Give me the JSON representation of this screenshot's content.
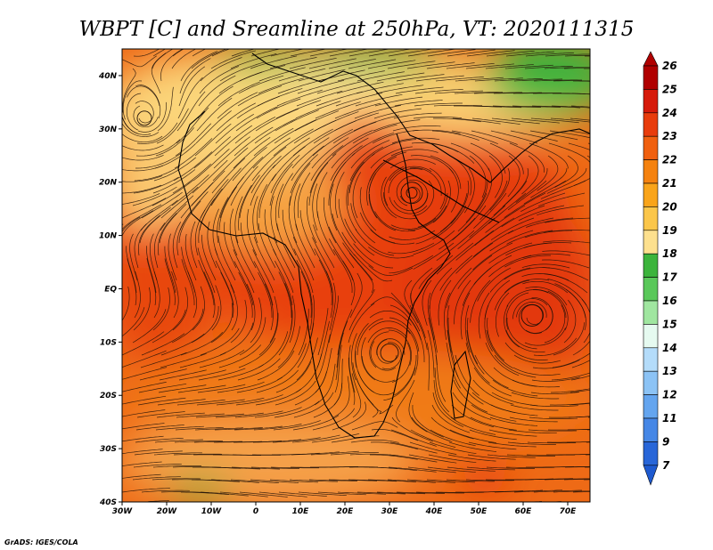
{
  "title": "WBPT [C] and Sreamline at 250hPa, VT: 2020111315",
  "credit": "GrADS: IGES/COLA",
  "map": {
    "lon_range": [
      -30,
      75
    ],
    "lat_range": [
      -40,
      45
    ],
    "x_ticks": [
      {
        "value": -30,
        "label": "30W"
      },
      {
        "value": -20,
        "label": "20W"
      },
      {
        "value": -10,
        "label": "10W"
      },
      {
        "value": 0,
        "label": "0"
      },
      {
        "value": 10,
        "label": "10E"
      },
      {
        "value": 20,
        "label": "20E"
      },
      {
        "value": 30,
        "label": "30E"
      },
      {
        "value": 40,
        "label": "40E"
      },
      {
        "value": 50,
        "label": "50E"
      },
      {
        "value": 60,
        "label": "60E"
      },
      {
        "value": 70,
        "label": "70E"
      }
    ],
    "y_ticks": [
      {
        "value": 40,
        "label": "40N"
      },
      {
        "value": 30,
        "label": "30N"
      },
      {
        "value": 20,
        "label": "20N"
      },
      {
        "value": 10,
        "label": "10N"
      },
      {
        "value": 0,
        "label": "EQ"
      },
      {
        "value": -10,
        "label": "10S"
      },
      {
        "value": -20,
        "label": "20S"
      },
      {
        "value": -30,
        "label": "30S"
      },
      {
        "value": -40,
        "label": "40S"
      }
    ]
  },
  "colorbar": {
    "labels": [
      "26",
      "25",
      "24",
      "23",
      "22",
      "21",
      "20",
      "19",
      "18",
      "17",
      "16",
      "15",
      "14",
      "13",
      "12",
      "11",
      "9",
      "7"
    ],
    "colors": [
      "#b00000",
      "#d61a0a",
      "#e83c0c",
      "#f0600f",
      "#f5820f",
      "#f9a41a",
      "#fbc64a",
      "#fde08e",
      "#3cb43c",
      "#5ac85a",
      "#a0e6a0",
      "#e6faf0",
      "#b4dcfa",
      "#8cc3f5",
      "#64a5ef",
      "#4687e6",
      "#2866d8"
    ]
  },
  "features": {
    "vortices": [
      {
        "lon": 35,
        "lat": 18,
        "label": ""
      },
      {
        "lon": -25,
        "lat": 32,
        "label": ""
      },
      {
        "lon": 30,
        "lat": -12,
        "label": ""
      },
      {
        "lon": 62,
        "lat": -5,
        "label": ""
      }
    ]
  }
}
